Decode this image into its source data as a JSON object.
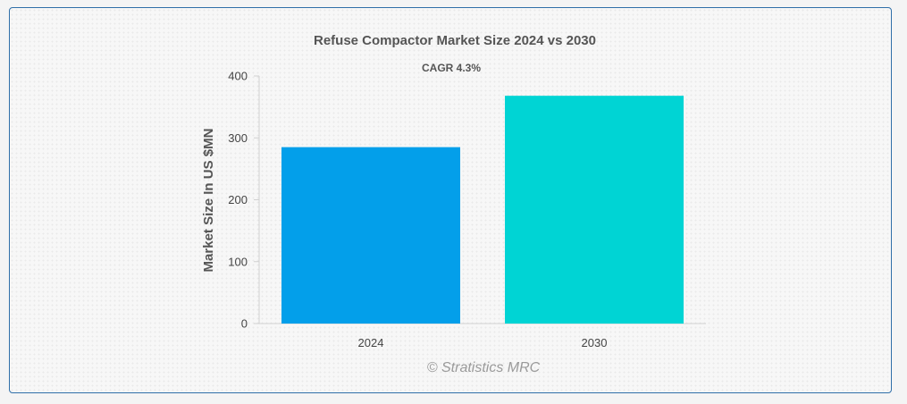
{
  "chart_data": {
    "type": "bar",
    "title": "Refuse Compactor Market Size 2024 vs 2030",
    "subtitle": "CAGR 4.3%",
    "xlabel": "",
    "ylabel": "Market Size In US $MN",
    "categories": [
      "2024",
      "2030"
    ],
    "values": [
      285,
      368
    ],
    "colors": [
      "#039fea",
      "#00d4d4"
    ],
    "ylim": [
      0,
      400
    ],
    "yticks": [
      0,
      100,
      200,
      300,
      400
    ],
    "grid": false,
    "legend": "none"
  },
  "watermark": "© Stratistics MRC"
}
